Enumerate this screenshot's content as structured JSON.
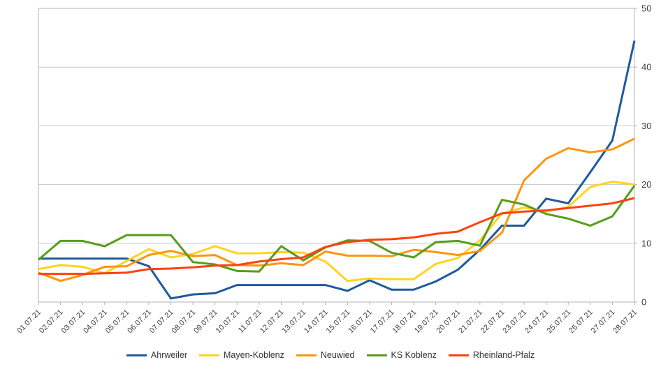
{
  "chart_data": {
    "type": "line",
    "x": [
      "01.07.21",
      "02.07.21",
      "03.07.21",
      "04.07.21",
      "05.07.21",
      "06.07.21",
      "07.07.21",
      "08.07.21",
      "09.07.21",
      "10.07.21",
      "11.07.21",
      "12.07.21",
      "13.07.21",
      "14.07.21",
      "15.07.21",
      "16.07.21",
      "17.07.21",
      "18.07.21",
      "19.07.21",
      "20.07.21",
      "21.07.21",
      "22.07.21",
      "23.07.21",
      "24.07.21",
      "25.07.21",
      "26.07.21",
      "27.07.21",
      "28.07.21"
    ],
    "series": [
      {
        "name": "Ahrweiler",
        "color": "#1e5a9c",
        "values": [
          7.4,
          7.4,
          7.4,
          7.4,
          7.4,
          6.1,
          0.6,
          1.3,
          1.5,
          2.9,
          2.9,
          2.9,
          2.9,
          2.9,
          1.9,
          3.7,
          2.1,
          2.1,
          3.5,
          5.5,
          8.9,
          13.0,
          13.0,
          17.6,
          16.8,
          22.1,
          27.5,
          44.5
        ]
      },
      {
        "name": "Mayen-Koblenz",
        "color": "#ffd320",
        "values": [
          5.6,
          6.3,
          6.0,
          4.9,
          7.0,
          9.0,
          7.6,
          8.2,
          9.5,
          8.3,
          8.3,
          8.5,
          8.4,
          6.9,
          3.6,
          4.0,
          3.9,
          3.9,
          6.5,
          7.5,
          10.5,
          15.1,
          16.1,
          15.4,
          16.2,
          19.6,
          20.5,
          20.0
        ]
      },
      {
        "name": "Neuwied",
        "color": "#ff950e",
        "values": [
          5.0,
          3.6,
          4.6,
          6.0,
          6.1,
          8.0,
          8.7,
          7.8,
          8.0,
          6.3,
          6.2,
          6.6,
          6.3,
          8.6,
          7.9,
          7.9,
          7.8,
          8.9,
          8.5,
          8.0,
          8.7,
          11.8,
          20.7,
          24.4,
          26.2,
          25.5,
          26.0,
          27.8
        ]
      },
      {
        "name": "KS Koblenz",
        "color": "#579d1c",
        "values": [
          7.2,
          10.4,
          10.4,
          9.5,
          11.4,
          11.4,
          11.4,
          6.8,
          6.4,
          5.3,
          5.2,
          9.5,
          7.1,
          9.3,
          10.5,
          10.4,
          8.4,
          7.6,
          10.2,
          10.4,
          9.6,
          17.4,
          16.6,
          15.0,
          14.2,
          13.0,
          14.6,
          19.8
        ]
      },
      {
        "name": "Rheinland-Pfalz",
        "color": "#ff420e",
        "values": [
          4.8,
          4.8,
          4.8,
          4.9,
          5.0,
          5.6,
          5.7,
          5.9,
          6.2,
          6.3,
          6.9,
          7.3,
          7.6,
          9.4,
          10.2,
          10.6,
          10.7,
          11.0,
          11.6,
          12.0,
          13.6,
          15.1,
          15.4,
          15.6,
          16.0,
          16.4,
          16.8,
          17.7
        ]
      }
    ],
    "title": "",
    "xlabel": "",
    "ylabel": "",
    "ylim": [
      0,
      50
    ],
    "yticks": [
      "0",
      "10",
      "20",
      "30",
      "40",
      "50"
    ],
    "y_axis_side": "right",
    "grid": "horizontal",
    "x_label_rotation": -45,
    "legend_position": "bottom"
  },
  "style": {
    "grid_color": "#c6c6c6",
    "border_color": "#b3b3b3",
    "tick_color": "#b3b3b3",
    "axis_text_color": "#3f3f3f",
    "background_color": "#ffffff",
    "line_width": 3
  }
}
